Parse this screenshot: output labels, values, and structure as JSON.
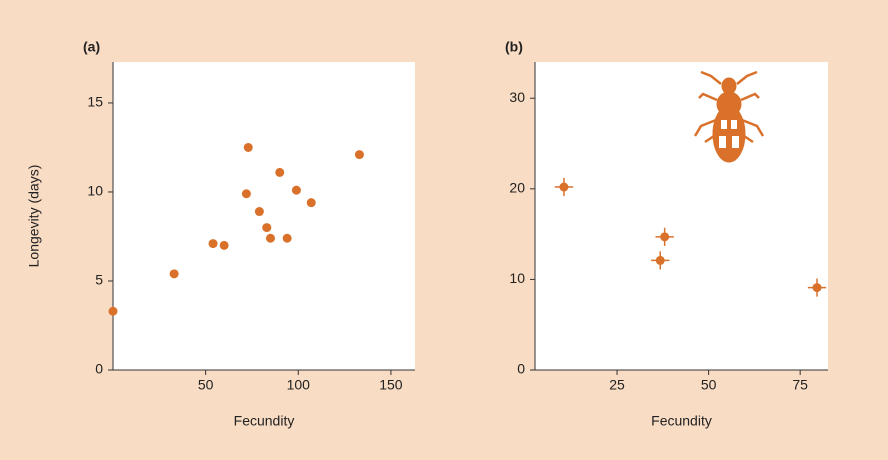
{
  "chart_data": [
    {
      "type": "scatter",
      "panel_label": "(a)",
      "x_label": "Fecundity",
      "y_label": "Longevity (days)",
      "x": [
        0,
        33,
        54,
        60,
        73,
        72,
        79,
        83,
        85,
        90,
        94,
        99,
        107,
        133
      ],
      "y": [
        3.3,
        5.4,
        7.1,
        7.0,
        12.5,
        9.9,
        8.9,
        8.0,
        7.4,
        11.1,
        7.4,
        10.1,
        9.4,
        12.1
      ],
      "xlim": [
        0,
        163
      ],
      "ylim": [
        0,
        17.3
      ],
      "xticks": [
        50,
        100,
        150
      ],
      "yticks": [
        0,
        5,
        10,
        15
      ],
      "color": "#d9712b"
    },
    {
      "type": "scatter",
      "panel_label": "(b)",
      "x_label": "Fecundity",
      "x": [
        10.5,
        38,
        36.8,
        79.6
      ],
      "y": [
        20.2,
        14.7,
        12.1,
        9.1
      ],
      "xerr": [
        2.5,
        2.5,
        2.5,
        2.5
      ],
      "yerr": [
        1,
        1,
        1,
        1
      ],
      "xlim": [
        2.6,
        82.6
      ],
      "ylim": [
        0,
        34
      ],
      "xticks": [
        25,
        50,
        75
      ],
      "yticks": [
        0,
        10,
        20,
        30
      ],
      "color": "#d9712b"
    }
  ]
}
